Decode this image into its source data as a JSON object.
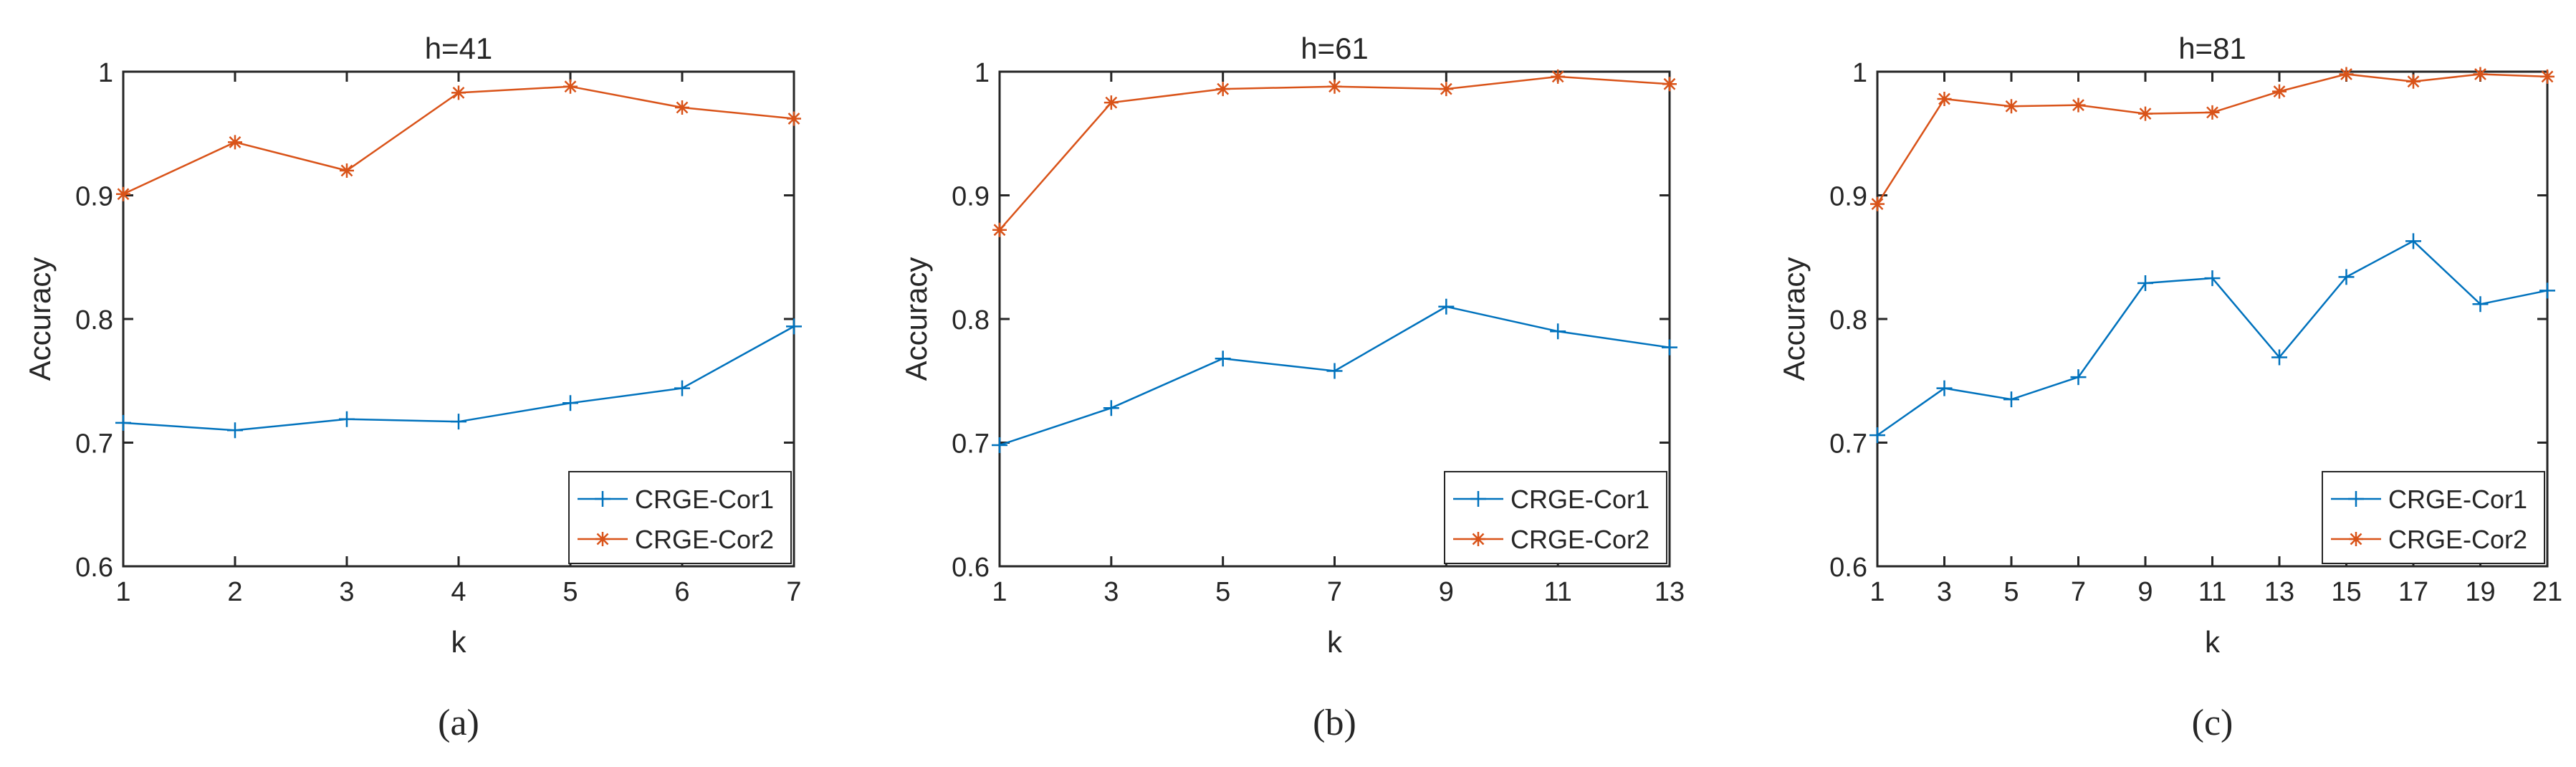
{
  "colors": {
    "series1": "#0072BD",
    "series2": "#D95319",
    "axis": "#262626",
    "legend_border": "#262626"
  },
  "chart_data": [
    {
      "type": "line",
      "title": "h=41",
      "xlabel": "k",
      "ylabel": "Accuracy",
      "caption": "(a)",
      "xlim": [
        1,
        7
      ],
      "ylim": [
        0.6,
        1
      ],
      "xticks": [
        1,
        2,
        3,
        4,
        5,
        6,
        7
      ],
      "yticks": [
        0.6,
        0.7,
        0.8,
        0.9,
        1
      ],
      "ytick_labels": [
        "0.6",
        "0.7",
        "0.8",
        "0.9",
        "1"
      ],
      "legend_position": "bottom-right",
      "x": [
        1,
        2,
        3,
        4,
        5,
        6,
        7
      ],
      "series": [
        {
          "name": "CRGE-Cor1",
          "marker": "plus",
          "values": [
            0.716,
            0.71,
            0.719,
            0.717,
            0.732,
            0.744,
            0.794
          ]
        },
        {
          "name": "CRGE-Cor2",
          "marker": "asterisk",
          "values": [
            0.901,
            0.943,
            0.92,
            0.983,
            0.988,
            0.971,
            0.962
          ]
        }
      ]
    },
    {
      "type": "line",
      "title": "h=61",
      "xlabel": "k",
      "ylabel": "Accuracy",
      "caption": "(b)",
      "xlim": [
        1,
        13
      ],
      "ylim": [
        0.6,
        1
      ],
      "xticks": [
        1,
        3,
        5,
        7,
        9,
        11,
        13
      ],
      "yticks": [
        0.6,
        0.7,
        0.8,
        0.9,
        1
      ],
      "ytick_labels": [
        "0.6",
        "0.7",
        "0.8",
        "0.9",
        "1"
      ],
      "legend_position": "bottom-right",
      "x": [
        1,
        3,
        5,
        7,
        9,
        11,
        13
      ],
      "series": [
        {
          "name": "CRGE-Cor1",
          "marker": "plus",
          "values": [
            0.698,
            0.728,
            0.768,
            0.758,
            0.81,
            0.79,
            0.777
          ]
        },
        {
          "name": "CRGE-Cor2",
          "marker": "asterisk",
          "values": [
            0.872,
            0.975,
            0.986,
            0.988,
            0.986,
            0.996,
            0.99
          ]
        }
      ]
    },
    {
      "type": "line",
      "title": "h=81",
      "xlabel": "k",
      "ylabel": "Accuracy",
      "caption": "(c)",
      "xlim": [
        1,
        21
      ],
      "ylim": [
        0.6,
        1
      ],
      "xticks": [
        1,
        3,
        5,
        7,
        9,
        11,
        13,
        15,
        17,
        19,
        21
      ],
      "yticks": [
        0.6,
        0.7,
        0.8,
        0.9,
        1
      ],
      "ytick_labels": [
        "0.6",
        "0.7",
        "0.8",
        "0.9",
        "1"
      ],
      "legend_position": "bottom-right",
      "x": [
        1,
        3,
        5,
        7,
        9,
        11,
        13,
        15,
        17,
        19,
        21
      ],
      "series": [
        {
          "name": "CRGE-Cor1",
          "marker": "plus",
          "values": [
            0.706,
            0.744,
            0.735,
            0.753,
            0.829,
            0.833,
            0.769,
            0.834,
            0.863,
            0.812,
            0.823
          ]
        },
        {
          "name": "CRGE-Cor2",
          "marker": "asterisk",
          "values": [
            0.893,
            0.978,
            0.972,
            0.973,
            0.966,
            0.967,
            0.984,
            0.998,
            0.992,
            0.998,
            0.996
          ]
        }
      ]
    }
  ]
}
